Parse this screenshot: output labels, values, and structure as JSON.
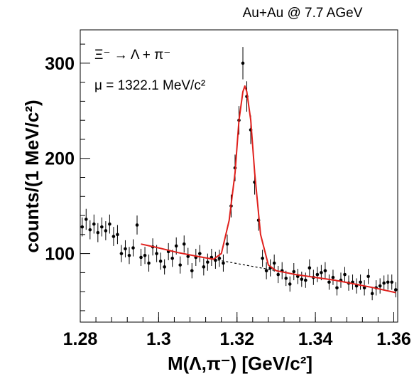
{
  "chart_data": {
    "type": "scatter",
    "title": "Au+Au @ 7.7 AGeV",
    "xlabel": "M(Λ,π⁻)  [GeV/c²]",
    "ylabel": "counts/(1 MeV/c²)",
    "xlim": [
      1.28,
      1.361
    ],
    "ylim": [
      28,
      335
    ],
    "x_ticks": [
      1.28,
      1.3,
      1.32,
      1.34,
      1.36
    ],
    "x_tick_labels": [
      "1.28",
      "1.3",
      "1.32",
      "1.34",
      "1.36"
    ],
    "y_ticks": [
      100,
      200,
      300
    ],
    "y_tick_labels": [
      "100",
      "200",
      "300"
    ],
    "grid": false,
    "annotations": [
      "Ξ⁻ → Λ + π⁻",
      "μ = 1322.1 MeV/c²"
    ],
    "series": [
      {
        "kind": "points-with-errors",
        "color": "#000000",
        "x": [
          1.2805,
          1.2815,
          1.2825,
          1.2835,
          1.2845,
          1.2855,
          1.2865,
          1.2875,
          1.2885,
          1.2895,
          1.2905,
          1.2915,
          1.2925,
          1.2935,
          1.2945,
          1.2955,
          1.2965,
          1.2975,
          1.2985,
          1.2995,
          1.3005,
          1.3015,
          1.3025,
          1.3035,
          1.3045,
          1.3055,
          1.3065,
          1.3075,
          1.3085,
          1.3095,
          1.3105,
          1.3115,
          1.3125,
          1.3135,
          1.3145,
          1.3155,
          1.3165,
          1.3175,
          1.3185,
          1.3195,
          1.3205,
          1.3215,
          1.3225,
          1.3235,
          1.3245,
          1.3255,
          1.3265,
          1.3275,
          1.3285,
          1.3295,
          1.3305,
          1.3315,
          1.3325,
          1.3335,
          1.3345,
          1.3355,
          1.3365,
          1.3375,
          1.3385,
          1.3395,
          1.3405,
          1.3415,
          1.3425,
          1.3435,
          1.3445,
          1.3455,
          1.3465,
          1.3475,
          1.3485,
          1.3495,
          1.3505,
          1.3515,
          1.3525,
          1.3535,
          1.3545,
          1.3555,
          1.3565,
          1.3575,
          1.3585,
          1.3595,
          1.3605
        ],
        "y": [
          128,
          136,
          125,
          131,
          122,
          128,
          124,
          131,
          118,
          120,
          100,
          105,
          98,
          106,
          130,
          96,
          98,
          90,
          107,
          100,
          92,
          86,
          102,
          95,
          108,
          88,
          110,
          97,
          82,
          96,
          100,
          86,
          91,
          96,
          93,
          95,
          90,
          110,
          150,
          190,
          240,
          300,
          265,
          230,
          175,
          135,
          95,
          82,
          85,
          90,
          78,
          82,
          74,
          68,
          81,
          76,
          73,
          72,
          85,
          75,
          78,
          80,
          82,
          70,
          75,
          64,
          72,
          78,
          69,
          70,
          66,
          70,
          64,
          76,
          58,
          64,
          66,
          69,
          70,
          70,
          62
        ],
        "err": [
          10,
          11,
          10,
          10,
          10,
          10,
          10,
          10,
          10,
          10,
          9,
          9,
          9,
          9,
          10,
          9,
          9,
          9,
          9,
          9,
          9,
          8,
          9,
          9,
          9,
          9,
          9,
          9,
          8,
          9,
          9,
          9,
          9,
          9,
          9,
          9,
          9,
          10,
          12,
          14,
          15,
          17,
          16,
          15,
          13,
          11,
          9,
          9,
          9,
          9,
          9,
          9,
          8,
          8,
          9,
          8,
          8,
          8,
          9,
          8,
          8,
          8,
          9,
          8,
          8,
          8,
          8,
          8,
          8,
          8,
          8,
          8,
          8,
          8,
          7,
          8,
          8,
          8,
          8,
          8,
          8
        ]
      },
      {
        "kind": "fit",
        "color": "#e0201c",
        "x": [
          1.2955,
          1.3,
          1.305,
          1.31,
          1.314,
          1.316,
          1.318,
          1.3195,
          1.3205,
          1.3215,
          1.322,
          1.3225,
          1.3235,
          1.3245,
          1.326,
          1.328,
          1.33,
          1.335,
          1.34,
          1.345,
          1.35,
          1.355,
          1.3605
        ],
        "y": [
          110,
          106,
          101,
          97,
          94,
          100,
          135,
          185,
          240,
          270,
          276,
          270,
          240,
          185,
          120,
          88,
          82,
          78,
          75,
          72,
          68,
          64,
          59
        ]
      },
      {
        "kind": "background",
        "color": "#000000",
        "x": [
          1.314,
          1.33
        ],
        "y": [
          94,
          82
        ]
      }
    ]
  }
}
